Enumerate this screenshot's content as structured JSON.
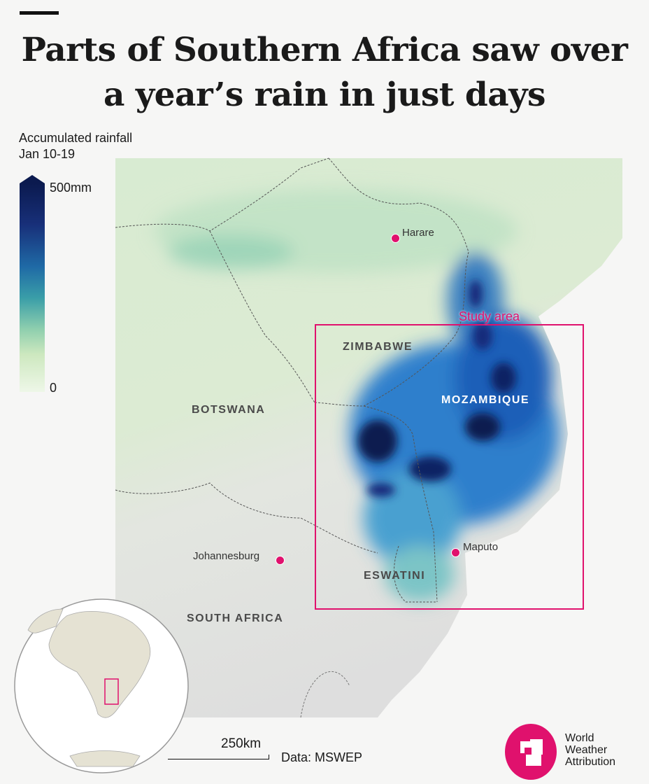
{
  "title": {
    "line1": "Parts of Southern Africa saw over",
    "line2": "a year’s rain in just days"
  },
  "legend": {
    "title_line1": "Accumulated rainfall",
    "title_line2": "Jan 10-19",
    "max_label": "500mm",
    "min_label": "0",
    "max_value_mm": 500,
    "min_value_mm": 0
  },
  "countries": {
    "zimbabwe": "ZIMBABWE",
    "botswana": "BOTSWANA",
    "mozambique": "MOZAMBIQUE",
    "eswatini": "ESWATINI",
    "south_africa": "SOUTH AFRICA"
  },
  "cities": {
    "harare": "Harare",
    "johannesburg": "Johannesburg",
    "maputo": "Maputo"
  },
  "study_area": {
    "label": "Study area"
  },
  "scale": {
    "label": "250km"
  },
  "source": "Data: MSWEP",
  "logo": {
    "line1": "World",
    "line2": "Weather",
    "line3": "Attribution"
  },
  "colors": {
    "accent": "#e0116d",
    "rain_max": "#0b1a4f",
    "rain_min": "#eef7e8",
    "land": "#dcead3",
    "ocean": "#f6f6f5"
  }
}
